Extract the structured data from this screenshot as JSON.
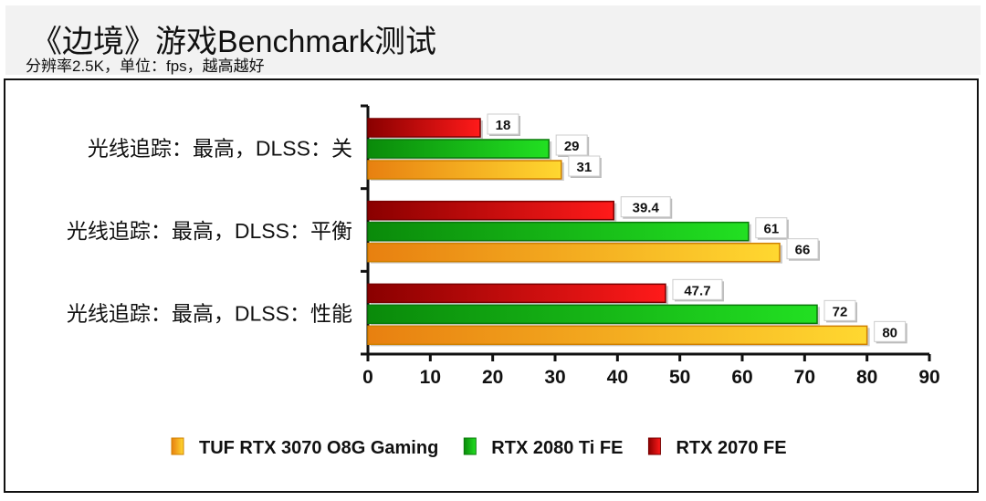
{
  "header": {
    "title": "《边境》游戏Benchmark测试",
    "subtitle": "分辨率2.5K，单位：fps，越高越好"
  },
  "chart_data": {
    "type": "bar",
    "orientation": "horizontal",
    "title": "《边境》游戏Benchmark测试",
    "subtitle": "分辨率2.5K，单位：fps，越高越好",
    "categories": [
      "光线追踪：最高，DLSS：关",
      "光线追踪：最高，DLSS：平衡",
      "光线追踪：最高，DLSS：性能"
    ],
    "series": [
      {
        "name": "RTX 2070 FE",
        "values": [
          18,
          39.4,
          47.7
        ],
        "color": "#d40000"
      },
      {
        "name": "RTX 2080 Ti FE",
        "values": [
          29,
          61,
          72
        ],
        "color": "#16b816"
      },
      {
        "name": "TUF RTX 3070 O8G Gaming",
        "values": [
          31,
          66,
          80
        ],
        "color": "#f0a010"
      }
    ],
    "legend_order": [
      "TUF RTX 3070 O8G Gaming",
      "RTX 2080 Ti FE",
      "RTX 2070 FE"
    ],
    "xlim": [
      0,
      90
    ],
    "xticks": [
      0,
      10,
      20,
      30,
      40,
      50,
      60,
      70,
      80,
      90
    ],
    "grid": false,
    "legend_position": "bottom"
  }
}
